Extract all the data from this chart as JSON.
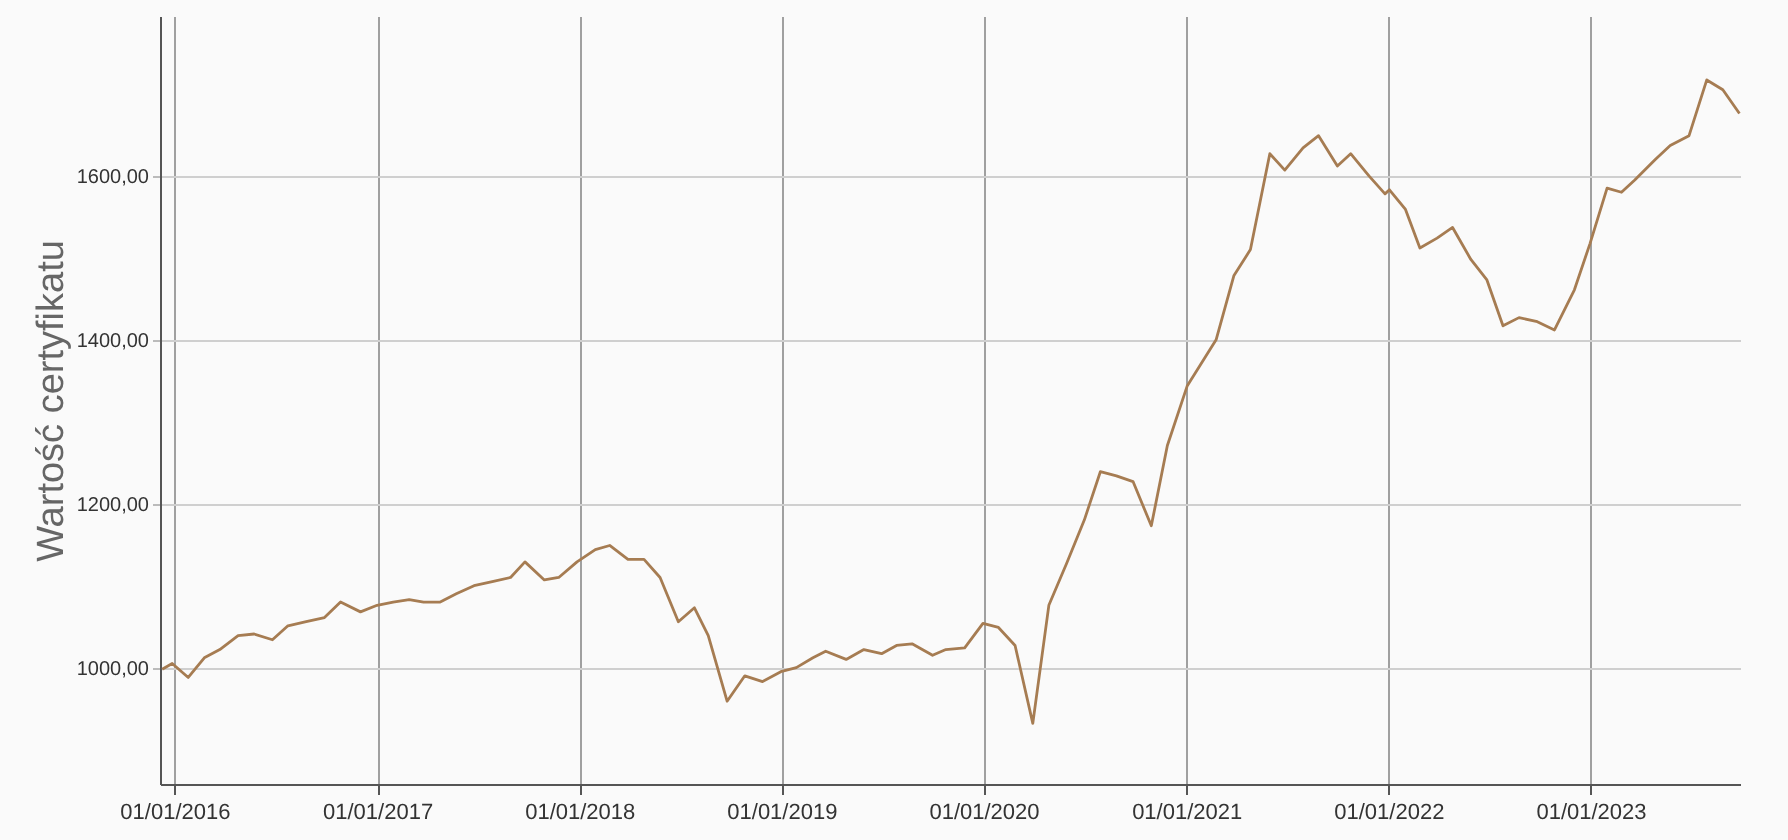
{
  "chart_data": {
    "type": "line",
    "ylabel": "Wartość certyfikatu",
    "x": [
      "2015-12-10",
      "2015-12-28",
      "2016-01-26",
      "2016-02-24",
      "2016-03-23",
      "2016-04-25",
      "2016-05-24",
      "2016-06-26",
      "2016-07-24",
      "2016-08-26",
      "2016-09-28",
      "2016-10-27",
      "2016-12-02",
      "2017-01-01",
      "2017-01-30",
      "2017-02-28",
      "2017-03-26",
      "2017-04-25",
      "2017-05-24",
      "2017-06-25",
      "2017-07-28",
      "2017-08-30",
      "2017-09-25",
      "2017-10-30",
      "2017-11-25",
      "2017-12-28",
      "2018-01-30",
      "2018-02-25",
      "2018-03-30",
      "2018-04-28",
      "2018-05-27",
      "2018-06-29",
      "2018-07-28",
      "2018-08-22",
      "2018-09-25",
      "2018-10-27",
      "2018-11-28",
      "2018-12-31",
      "2019-01-28",
      "2019-02-27",
      "2019-03-22",
      "2019-04-28",
      "2019-05-30",
      "2019-07-01",
      "2019-07-28",
      "2019-08-25",
      "2019-10-01",
      "2019-10-25",
      "2019-11-28",
      "2019-12-31",
      "2020-01-28",
      "2020-02-27",
      "2020-03-30",
      "2020-04-28",
      "2020-05-30",
      "2020-07-01",
      "2020-07-30",
      "2020-08-28",
      "2020-09-27",
      "2020-10-30",
      "2020-11-28",
      "2021-01-03",
      "2021-02-24",
      "2021-03-28",
      "2021-04-27",
      "2021-06-01",
      "2021-06-28",
      "2021-07-31",
      "2021-08-28",
      "2021-10-01",
      "2021-10-25",
      "2021-11-27",
      "2021-12-26",
      "2022-01-03",
      "2022-02-01",
      "2022-02-27",
      "2022-03-30",
      "2022-04-27",
      "2022-05-30",
      "2022-06-28",
      "2022-07-27",
      "2022-08-25",
      "2022-09-27",
      "2022-10-28",
      "2022-12-03",
      "2022-12-31",
      "2023-01-31",
      "2023-02-26",
      "2023-03-22",
      "2023-04-28",
      "2023-05-25",
      "2023-06-28",
      "2023-07-30",
      "2023-08-28",
      "2023-09-27"
    ],
    "series": [
      {
        "color": "#a67c52",
        "values": [
          998,
          1005,
          988,
          1012,
          1022,
          1039,
          1041,
          1034,
          1051,
          1056,
          1061,
          1080,
          1068,
          1076,
          1080,
          1083,
          1080,
          1080,
          1090,
          1100,
          1105,
          1110,
          1129,
          1107,
          1110,
          1129,
          1144,
          1149,
          1132,
          1132,
          1110,
          1056,
          1073,
          1039,
          959,
          990,
          983,
          995,
          1000,
          1012,
          1020,
          1010,
          1022,
          1017,
          1027,
          1029,
          1015,
          1022,
          1024,
          1054,
          1049,
          1027,
          932,
          1076,
          1127,
          1180,
          1239,
          1234,
          1227,
          1173,
          1271,
          1344,
          1400,
          1478,
          1510,
          1627,
          1607,
          1634,
          1649,
          1612,
          1627,
          1600,
          1578,
          1583,
          1559,
          1512,
          1524,
          1537,
          1498,
          1473,
          1417,
          1427,
          1422,
          1412,
          1461,
          1517,
          1585,
          1580,
          1595,
          1620,
          1637,
          1649,
          1717,
          1705,
          1676
        ]
      }
    ],
    "xlim": [
      "2015-12-06",
      "2023-09-28"
    ],
    "xticks": [
      {
        "value": "2016-01-01",
        "label": "01/01/2016"
      },
      {
        "value": "2017-01-01",
        "label": "01/01/2017"
      },
      {
        "value": "2018-01-01",
        "label": "01/01/2018"
      },
      {
        "value": "2019-01-01",
        "label": "01/01/2019"
      },
      {
        "value": "2020-01-01",
        "label": "01/01/2020"
      },
      {
        "value": "2021-01-01",
        "label": "01/01/2021"
      },
      {
        "value": "2022-01-01",
        "label": "01/01/2022"
      },
      {
        "value": "2023-01-01",
        "label": "01/01/2023"
      }
    ],
    "ylim": [
      858,
      1795
    ],
    "yticks": [
      {
        "value": 1000,
        "label": "1000,00"
      },
      {
        "value": 1200,
        "label": "1200,00"
      },
      {
        "value": 1400,
        "label": "1400,00"
      },
      {
        "value": 1600,
        "label": "1600,00"
      }
    ],
    "grid": true
  }
}
